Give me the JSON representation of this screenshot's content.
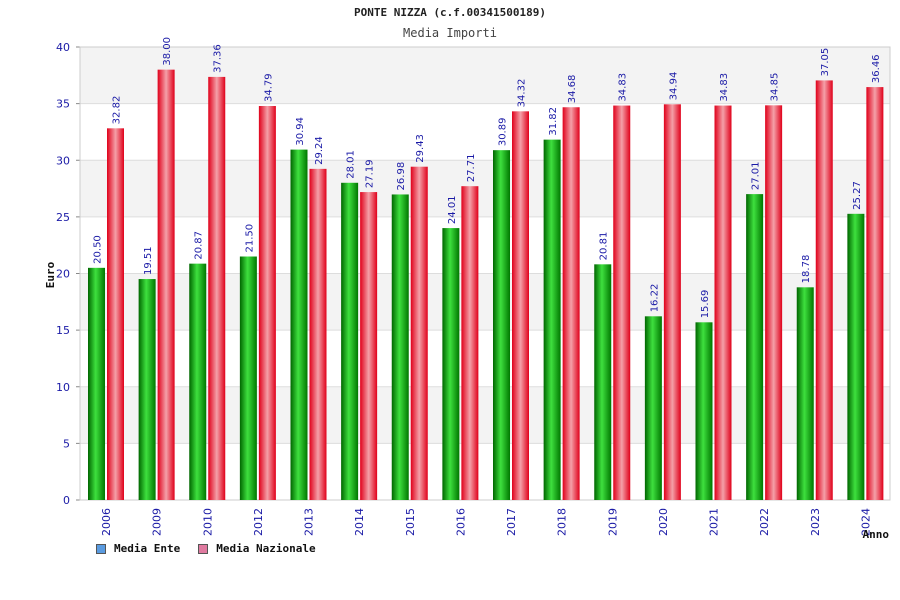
{
  "chart_data": {
    "type": "bar",
    "title": "PONTE NIZZA (c.f.00341500189)",
    "subtitle": "Media Importi",
    "xlabel": "Anno",
    "ylabel": "Euro",
    "ylim": [
      0,
      40
    ],
    "yticks": [
      0,
      5,
      10,
      15,
      20,
      25,
      30,
      35,
      40
    ],
    "grid": true,
    "legend_position": "bottom-left",
    "categories": [
      "2006",
      "2009",
      "2010",
      "2012",
      "2013",
      "2014",
      "2015",
      "2016",
      "2017",
      "2018",
      "2019",
      "2020",
      "2021",
      "2022",
      "2023",
      "2024"
    ],
    "series": [
      {
        "name": "Media Ente",
        "color": "#00b000",
        "legend_color": "#5a9be0",
        "values": [
          20.5,
          19.51,
          20.87,
          21.5,
          30.94,
          28.01,
          26.98,
          24.01,
          30.89,
          31.82,
          20.81,
          16.22,
          15.69,
          27.01,
          18.78,
          25.27
        ],
        "labels": [
          "20.50",
          "19.51",
          "20.87",
          "21.50",
          "30.94",
          "28.01",
          "26.98",
          "24.01",
          "30.89",
          "31.82",
          "20.81",
          "16.22",
          "15.69",
          "27.01",
          "18.78",
          "25.27"
        ]
      },
      {
        "name": "Media Nazionale",
        "color": "#e8202a",
        "legend_color": "#e07aa0",
        "values": [
          32.82,
          38.0,
          37.36,
          34.79,
          29.24,
          27.19,
          29.43,
          27.71,
          34.32,
          34.68,
          34.83,
          34.94,
          34.83,
          34.85,
          37.05,
          36.46
        ],
        "labels": [
          "32.82",
          "38.00",
          "37.36",
          "34.79",
          "29.24",
          "27.19",
          "29.43",
          "27.71",
          "34.32",
          "34.68",
          "34.83",
          "34.94",
          "34.83",
          "34.85",
          "37.05",
          "36.46"
        ]
      }
    ]
  }
}
